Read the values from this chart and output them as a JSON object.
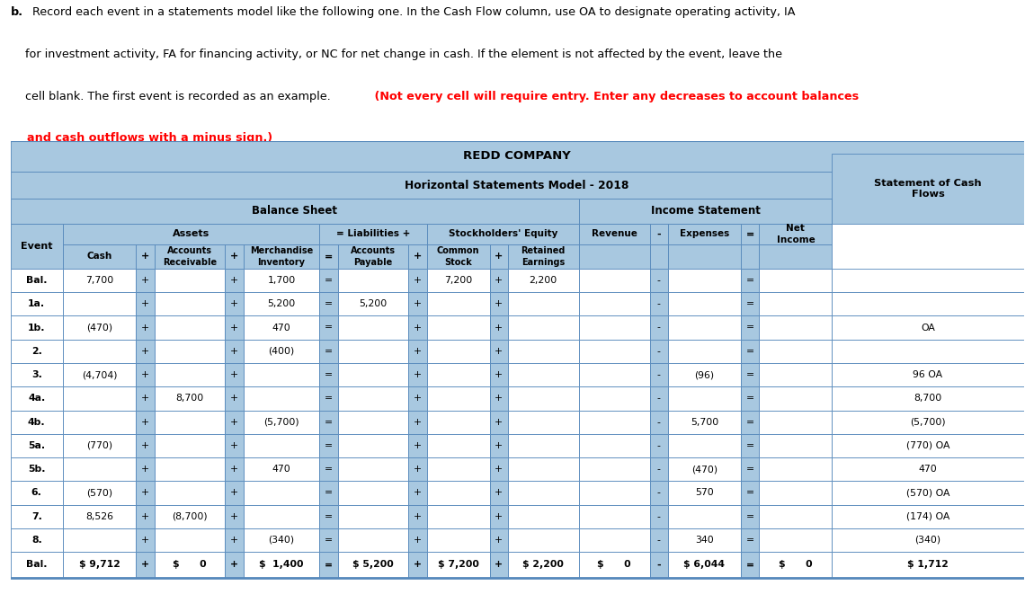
{
  "title1": "REDD COMPANY",
  "title2": "Horizontal Statements Model - 2018",
  "header_bg": "#a8c8e0",
  "border_color": "#5588bb",
  "intro_b": "b.",
  "intro_rest": " Record each event in a statements model like the following one. In the Cash Flow column, use OA to designate operating activity, IA",
  "intro_line2": "    for investment activity, FA for financing activity, or NC for net change in cash. If the element is not affected by the event, leave the",
  "intro_line3_normal": "    cell blank. The first event is recorded as an example.",
  "intro_line3_bold_red": " (Not every cell will require entry. Enter any decreases to account balances",
  "intro_line4_bold_red": "    and cash outflows with a minus sign.)",
  "rows": [
    {
      "event": "Bal.",
      "cash": "7,700",
      "p1": "+",
      "ar": "",
      "p2": "+",
      "inv": "1,700",
      "eq1": "=",
      "ap": "",
      "p3": "+",
      "cs": "7,200",
      "p4": "+",
      "re": "2,200",
      "rev": "",
      "minus": "-",
      "exp": "",
      "eq2": "=",
      "ni": "",
      "cf": ""
    },
    {
      "event": "1a.",
      "cash": "",
      "p1": "+",
      "ar": "",
      "p2": "+",
      "inv": "5,200",
      "eq1": "=",
      "ap": "5,200",
      "p3": "+",
      "cs": "",
      "p4": "+",
      "re": "",
      "rev": "",
      "minus": "-",
      "exp": "",
      "eq2": "=",
      "ni": "",
      "cf": ""
    },
    {
      "event": "1b.",
      "cash": "(470)",
      "p1": "+",
      "ar": "",
      "p2": "+",
      "inv": "470",
      "eq1": "=",
      "ap": "",
      "p3": "+",
      "cs": "",
      "p4": "+",
      "re": "",
      "rev": "",
      "minus": "-",
      "exp": "",
      "eq2": "=",
      "ni": "",
      "cf": "OA"
    },
    {
      "event": "2.",
      "cash": "",
      "p1": "+",
      "ar": "",
      "p2": "+",
      "inv": "(400)",
      "eq1": "=",
      "ap": "",
      "p3": "+",
      "cs": "",
      "p4": "+",
      "re": "",
      "rev": "",
      "minus": "-",
      "exp": "",
      "eq2": "=",
      "ni": "",
      "cf": ""
    },
    {
      "event": "3.",
      "cash": "(4,704)",
      "p1": "+",
      "ar": "",
      "p2": "+",
      "inv": "",
      "eq1": "=",
      "ap": "",
      "p3": "+",
      "cs": "",
      "p4": "+",
      "re": "",
      "rev": "",
      "minus": "-",
      "exp": "(96)",
      "eq2": "=",
      "ni": "",
      "cf": "96 OA"
    },
    {
      "event": "4a.",
      "cash": "",
      "p1": "+",
      "ar": "8,700",
      "p2": "+",
      "inv": "",
      "eq1": "=",
      "ap": "",
      "p3": "+",
      "cs": "",
      "p4": "+",
      "re": "",
      "rev": "",
      "minus": "-",
      "exp": "",
      "eq2": "=",
      "ni": "",
      "cf": "8,700"
    },
    {
      "event": "4b.",
      "cash": "",
      "p1": "+",
      "ar": "",
      "p2": "+",
      "inv": "(5,700)",
      "eq1": "=",
      "ap": "",
      "p3": "+",
      "cs": "",
      "p4": "+",
      "re": "",
      "rev": "",
      "minus": "-",
      "exp": "5,700",
      "eq2": "=",
      "ni": "",
      "cf": "(5,700)"
    },
    {
      "event": "5a.",
      "cash": "(770)",
      "p1": "+",
      "ar": "",
      "p2": "+",
      "inv": "",
      "eq1": "=",
      "ap": "",
      "p3": "+",
      "cs": "",
      "p4": "+",
      "re": "",
      "rev": "",
      "minus": "-",
      "exp": "",
      "eq2": "=",
      "ni": "",
      "cf": "(770) OA"
    },
    {
      "event": "5b.",
      "cash": "",
      "p1": "+",
      "ar": "",
      "p2": "+",
      "inv": "470",
      "eq1": "=",
      "ap": "",
      "p3": "+",
      "cs": "",
      "p4": "+",
      "re": "",
      "rev": "",
      "minus": "-",
      "exp": "(470)",
      "eq2": "=",
      "ni": "",
      "cf": "470"
    },
    {
      "event": "6.",
      "cash": "(570)",
      "p1": "+",
      "ar": "",
      "p2": "+",
      "inv": "",
      "eq1": "=",
      "ap": "",
      "p3": "+",
      "cs": "",
      "p4": "+",
      "re": "",
      "rev": "",
      "minus": "-",
      "exp": "570",
      "eq2": "=",
      "ni": "",
      "cf": "(570) OA"
    },
    {
      "event": "7.",
      "cash": "8,526",
      "p1": "+",
      "ar": "(8,700)",
      "p2": "+",
      "inv": "",
      "eq1": "=",
      "ap": "",
      "p3": "+",
      "cs": "",
      "p4": "+",
      "re": "",
      "rev": "",
      "minus": "-",
      "exp": "",
      "eq2": "=",
      "ni": "",
      "cf": "(174) OA"
    },
    {
      "event": "8.",
      "cash": "",
      "p1": "+",
      "ar": "",
      "p2": "+",
      "inv": "(340)",
      "eq1": "=",
      "ap": "",
      "p3": "+",
      "cs": "",
      "p4": "+",
      "re": "",
      "rev": "",
      "minus": "-",
      "exp": "340",
      "eq2": "=",
      "ni": "",
      "cf": "(340)"
    },
    {
      "event": "Bal.",
      "cash": "$ 9,712",
      "p1": "+",
      "ar": "$      0",
      "p2": "+",
      "inv": "$  1,400",
      "eq1": "=",
      "ap": "$ 5,200",
      "p3": "+",
      "cs": "$ 7,200",
      "p4": "+",
      "re": "$ 2,200",
      "rev": "$      0",
      "minus": "-",
      "exp": "$ 6,044",
      "eq2": "=",
      "ni": "$      0",
      "cf": "$ 1,712"
    }
  ]
}
